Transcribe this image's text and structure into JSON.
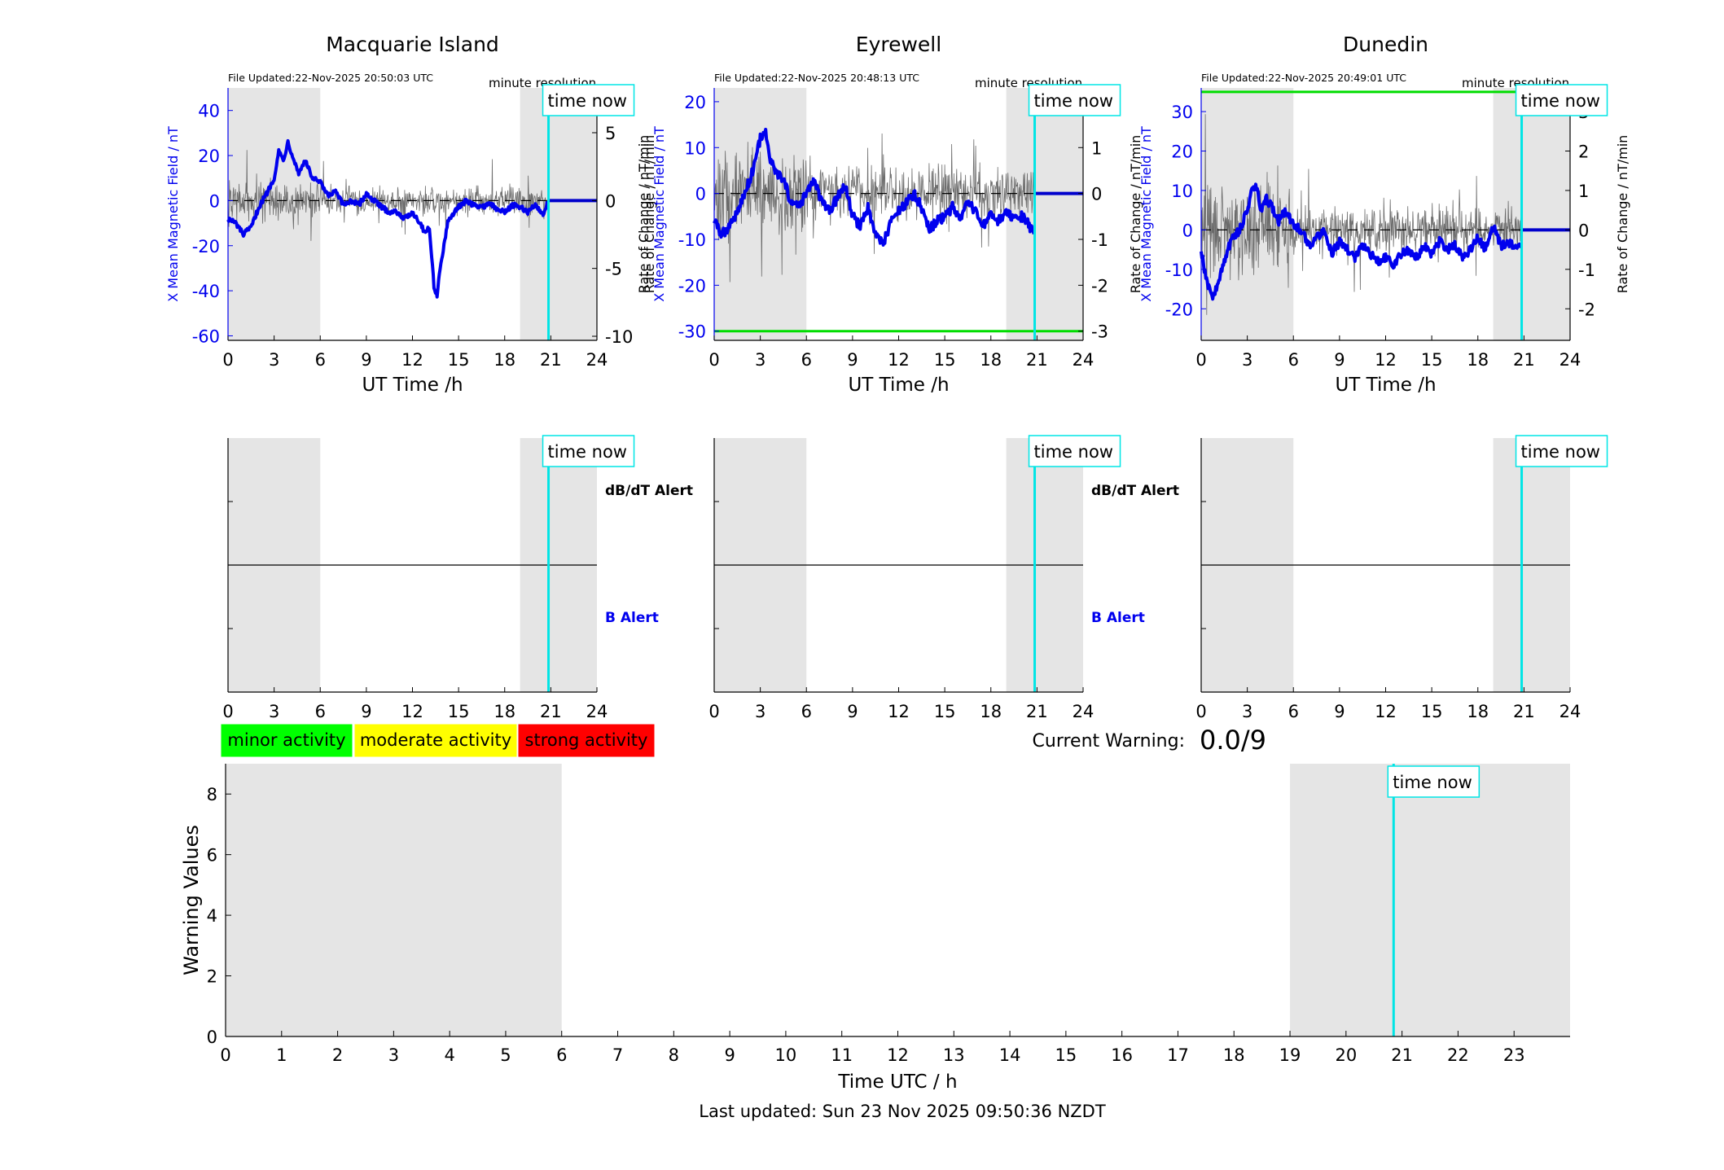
{
  "colors": {
    "background": "#ffffff",
    "shade": "#e5e5e5",
    "field_line": "#0000ee",
    "rate_line": "#555555",
    "now_line": "#00e5e5",
    "threshold_line": "#00dd00",
    "minor": "#00ff00",
    "moderate": "#ffff00",
    "strong": "#ff0000",
    "axis": "#000000"
  },
  "labels": {
    "file_updated_prefix": "File Updated:",
    "minute_resolution": "minute resolution",
    "time_now": "time now",
    "x_label_station": "UT Time /h",
    "y_left_label": "X Mean Magnetic Field / nT",
    "y_right_label": "Rate of Change / nT/min",
    "dbdt_alert": "dB/dT Alert",
    "b_alert": "B Alert",
    "current_warning_label": "Current Warning:",
    "current_warning_value": "0.0/9",
    "last_updated": "Last updated: Sun 23 Nov 2025 09:50:36 NZDT"
  },
  "legend": {
    "minor": "minor activity",
    "moderate": "moderate activity",
    "strong": "strong activity"
  },
  "chart_data": [
    {
      "type": "line",
      "title": "Macquarie Island",
      "file_updated": "22-Nov-2025 20:50:03 UTC",
      "xlabel": "UT Time /h",
      "ylabel": "X Mean Magnetic Field / nT",
      "ylabel_right": "Rate of Change / nT/min",
      "xlim": [
        0,
        24
      ],
      "xticks": [
        0,
        3,
        6,
        9,
        12,
        15,
        18,
        21,
        24
      ],
      "ylim": [
        -62,
        50
      ],
      "yticks": [
        -60,
        -40,
        -20,
        0,
        20,
        40
      ],
      "ylim_right": [
        -10.3,
        8.3
      ],
      "yticks_right": [
        -10,
        -5,
        0,
        5
      ],
      "shaded_hours": [
        [
          0,
          6
        ],
        [
          19,
          24
        ]
      ],
      "time_now_h": 20.85,
      "threshold": null,
      "seed": 7,
      "rate_noise_amplitude": [
        1.0,
        0.8
      ],
      "series": [
        {
          "name": "X Mean Magnetic Field",
          "x": [
            0,
            0.5,
            1,
            1.5,
            2,
            2.5,
            3,
            3.3,
            3.6,
            3.9,
            4.2,
            4.6,
            5,
            5.5,
            6,
            6.5,
            7,
            7.5,
            8,
            8.5,
            9,
            9.5,
            10,
            10.5,
            11,
            11.5,
            12,
            12.5,
            12.8,
            13.1,
            13.4,
            13.6,
            13.8,
            14,
            14.3,
            14.7,
            15,
            15.5,
            16,
            16.5,
            17,
            17.5,
            18,
            18.5,
            19,
            19.5,
            20,
            20.5,
            20.85,
            21,
            24
          ],
          "y": [
            -8,
            -10,
            -15,
            -12,
            -3,
            3,
            10,
            22,
            18,
            26,
            20,
            12,
            18,
            10,
            8,
            2,
            4,
            -2,
            0,
            -2,
            3,
            0,
            -3,
            -5,
            -5,
            -8,
            -5,
            -10,
            -14,
            -12,
            -38,
            -42,
            -30,
            -22,
            -10,
            -5,
            -3,
            0,
            -2,
            -3,
            -1,
            -4,
            -5,
            -2,
            -3,
            -5,
            -2,
            -6,
            0,
            0,
            0
          ]
        }
      ]
    },
    {
      "type": "line",
      "title": "Eyrewell",
      "file_updated": "22-Nov-2025 20:48:13 UTC",
      "xlabel": "UT Time /h",
      "ylabel": "X Mean Magnetic Field / nT",
      "ylabel_right": "Rate of Change / nT/min",
      "xlim": [
        0,
        24
      ],
      "xticks": [
        0,
        3,
        6,
        9,
        12,
        15,
        18,
        21,
        24
      ],
      "ylim": [
        -32,
        23
      ],
      "yticks": [
        -30,
        -20,
        -10,
        0,
        10,
        20
      ],
      "ylim_right": [
        -3.2,
        2.3
      ],
      "yticks_right": [
        -3,
        -2,
        -1,
        0,
        1,
        2
      ],
      "shaded_hours": [
        [
          0,
          6
        ],
        [
          19,
          24
        ]
      ],
      "time_now_h": 20.85,
      "threshold": -30,
      "seed": 13,
      "rate_noise_amplitude": [
        0.7,
        0.45
      ],
      "series": [
        {
          "name": "X Mean Magnetic Field",
          "x": [
            0,
            0.5,
            1,
            1.5,
            2,
            2.5,
            3,
            3.3,
            3.6,
            3.9,
            4.2,
            4.6,
            5,
            5.5,
            6,
            6.5,
            7,
            7.5,
            8,
            8.5,
            9,
            9.5,
            10,
            10.5,
            11,
            11.5,
            12,
            12.5,
            13,
            13.5,
            14,
            14.5,
            15,
            15.5,
            16,
            16.5,
            17,
            17.5,
            18,
            18.5,
            19,
            19.5,
            20,
            20.5,
            20.85,
            21,
            24
          ],
          "y": [
            -6,
            -9,
            -7,
            -4,
            0,
            5,
            12,
            14,
            8,
            5,
            4,
            2,
            -2,
            -3,
            0,
            3,
            -2,
            -4,
            -1,
            2,
            -5,
            -7,
            -3,
            -9,
            -11,
            -6,
            -4,
            -2,
            0,
            -3,
            -8,
            -6,
            -5,
            -3,
            -6,
            -2,
            -4,
            -7,
            -5,
            -6,
            -4,
            -6,
            -5,
            -7,
            -9,
            0,
            0
          ]
        }
      ]
    },
    {
      "type": "line",
      "title": "Dunedin",
      "file_updated": "22-Nov-2025 20:49:01 UTC",
      "xlabel": "UT Time /h",
      "ylabel": "X Mean Magnetic Field / nT",
      "ylabel_right": "Rate of Change / nT/min",
      "xlim": [
        0,
        24
      ],
      "xticks": [
        0,
        3,
        6,
        9,
        12,
        15,
        18,
        21,
        24
      ],
      "ylim": [
        -28,
        36
      ],
      "yticks": [
        -20,
        -10,
        0,
        10,
        20,
        30
      ],
      "ylim_right": [
        -2.8,
        3.6
      ],
      "yticks_right": [
        -2,
        -1,
        0,
        1,
        2,
        3
      ],
      "shaded_hours": [
        [
          0,
          6
        ],
        [
          19,
          24
        ]
      ],
      "time_now_h": 20.85,
      "threshold": 35,
      "seed": 29,
      "rate_noise_amplitude": [
        0.9,
        0.45
      ],
      "series": [
        {
          "name": "X Mean Magnetic Field",
          "x": [
            0,
            0.3,
            0.7,
            1,
            1.5,
            2,
            2.5,
            3,
            3.3,
            3.6,
            3.9,
            4.2,
            4.6,
            5,
            5.5,
            6,
            6.5,
            7,
            7.5,
            8,
            8.5,
            9,
            9.5,
            10,
            10.5,
            11,
            11.5,
            12,
            12.5,
            13,
            13.5,
            14,
            14.5,
            15,
            15.5,
            16,
            16.5,
            17,
            17.5,
            18,
            18.5,
            19,
            19.5,
            20,
            20.5,
            20.85,
            21,
            24
          ],
          "y": [
            -5,
            -12,
            -17,
            -15,
            -8,
            -2,
            0,
            5,
            10,
            11,
            4,
            8,
            6,
            2,
            5,
            1,
            0,
            -4,
            -2,
            0,
            -6,
            -3,
            -5,
            -7,
            -4,
            -6,
            -8,
            -7,
            -9,
            -6,
            -5,
            -7,
            -4,
            -6,
            -3,
            -5,
            -4,
            -7,
            -5,
            -2,
            -5,
            1,
            -4,
            -3,
            -5,
            -4,
            0,
            0
          ]
        }
      ]
    },
    {
      "type": "line",
      "title": "",
      "panel": "alert",
      "station": "Macquarie Island",
      "xlim": [
        0,
        24
      ],
      "xticks": [
        0,
        3,
        6,
        9,
        12,
        15,
        18,
        21,
        24
      ],
      "shaded_hours": [
        [
          0,
          6
        ],
        [
          19,
          24
        ]
      ],
      "time_now_h": 20.85,
      "series": []
    },
    {
      "type": "line",
      "title": "",
      "panel": "alert",
      "station": "Eyrewell",
      "xlim": [
        0,
        24
      ],
      "xticks": [
        0,
        3,
        6,
        9,
        12,
        15,
        18,
        21,
        24
      ],
      "shaded_hours": [
        [
          0,
          6
        ],
        [
          19,
          24
        ]
      ],
      "time_now_h": 20.85,
      "series": []
    },
    {
      "type": "line",
      "title": "",
      "panel": "alert",
      "station": "Dunedin",
      "xlim": [
        0,
        24
      ],
      "xticks": [
        0,
        3,
        6,
        9,
        12,
        15,
        18,
        21,
        24
      ],
      "shaded_hours": [
        [
          0,
          6
        ],
        [
          19,
          24
        ]
      ],
      "time_now_h": 20.85,
      "series": []
    },
    {
      "type": "bar",
      "title": "",
      "xlabel": "Time UTC / h",
      "ylabel": "Warning Values",
      "xlim": [
        0,
        24
      ],
      "xticks": [
        0,
        1,
        2,
        3,
        4,
        5,
        6,
        7,
        8,
        9,
        10,
        11,
        12,
        13,
        14,
        15,
        16,
        17,
        18,
        19,
        20,
        21,
        22,
        23
      ],
      "ylim": [
        0,
        9
      ],
      "yticks": [
        0,
        2,
        4,
        6,
        8
      ],
      "shaded_hours": [
        [
          0,
          6
        ],
        [
          19,
          24
        ]
      ],
      "time_now_h": 20.85,
      "current_warning": 0.0,
      "max_warning": 9,
      "series": []
    }
  ]
}
